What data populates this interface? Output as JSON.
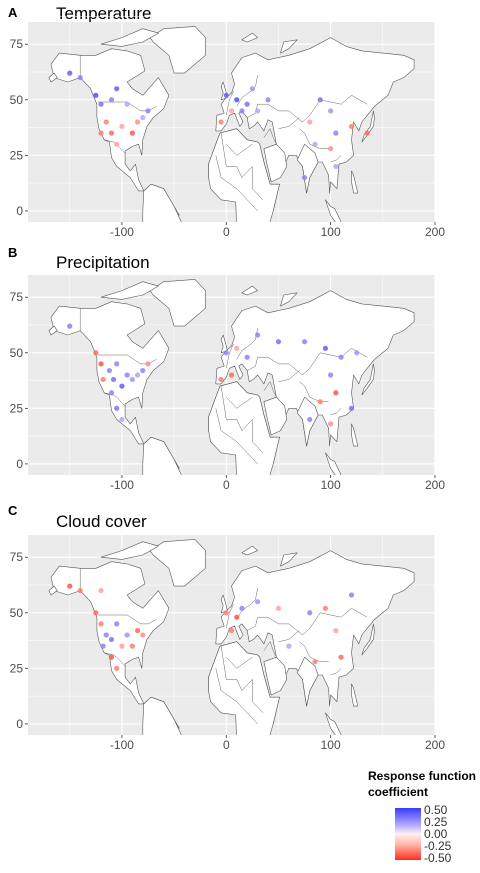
{
  "panels": [
    {
      "letter": "A",
      "title": "Temperature"
    },
    {
      "letter": "B",
      "title": "Precipitation"
    },
    {
      "letter": "C",
      "title": "Cloud cover"
    }
  ],
  "axes": {
    "x_ticks": [
      "-100",
      "0",
      "100",
      "200"
    ],
    "y_ticks": [
      "75",
      "50",
      "25",
      "0"
    ],
    "lon_values": [
      -100,
      0,
      100,
      200
    ],
    "lat_values": [
      75,
      50,
      25,
      0
    ]
  },
  "legend": {
    "title_line1": "Response function",
    "title_line2": "coefficient",
    "labels": [
      "0.50",
      "0.25",
      "0.00",
      "-0.25",
      "-0.50"
    ],
    "values": [
      0.5,
      0.25,
      0.0,
      -0.25,
      -0.5
    ]
  },
  "colors": {
    "panel_bg": "#ebebeb",
    "land": "#ffffff",
    "border": "#555555",
    "positive": "#3b3bff",
    "neutral": "#fdf1f1",
    "negative": "#ff2e1e"
  },
  "chart_data": [
    {
      "type": "scatter",
      "title": "Temperature",
      "xlabel": "",
      "ylabel": "",
      "xlim": [
        -190,
        200
      ],
      "ylim": [
        -5,
        85
      ],
      "grid": true,
      "points": [
        {
          "lon": -150,
          "lat": 62,
          "v": 0.4
        },
        {
          "lon": -140,
          "lat": 60,
          "v": 0.3
        },
        {
          "lon": -125,
          "lat": 52,
          "v": 0.45
        },
        {
          "lon": -120,
          "lat": 48,
          "v": 0.35
        },
        {
          "lon": -110,
          "lat": 50,
          "v": 0.3
        },
        {
          "lon": -105,
          "lat": 55,
          "v": 0.4
        },
        {
          "lon": -95,
          "lat": 48,
          "v": 0.2
        },
        {
          "lon": -115,
          "lat": 40,
          "v": -0.3
        },
        {
          "lon": -110,
          "lat": 35,
          "v": -0.35
        },
        {
          "lon": -100,
          "lat": 38,
          "v": -0.2
        },
        {
          "lon": -90,
          "lat": 35,
          "v": -0.4
        },
        {
          "lon": -85,
          "lat": 40,
          "v": -0.25
        },
        {
          "lon": -80,
          "lat": 42,
          "v": 0.2
        },
        {
          "lon": -75,
          "lat": 45,
          "v": 0.3
        },
        {
          "lon": -120,
          "lat": 35,
          "v": -0.3
        },
        {
          "lon": -105,
          "lat": 30,
          "v": -0.2
        },
        {
          "lon": 0,
          "lat": 52,
          "v": 0.4
        },
        {
          "lon": 10,
          "lat": 50,
          "v": 0.45
        },
        {
          "lon": 20,
          "lat": 48,
          "v": 0.35
        },
        {
          "lon": 15,
          "lat": 45,
          "v": 0.3
        },
        {
          "lon": 25,
          "lat": 55,
          "v": 0.25
        },
        {
          "lon": 5,
          "lat": 45,
          "v": -0.2
        },
        {
          "lon": -5,
          "lat": 40,
          "v": -0.3
        },
        {
          "lon": 30,
          "lat": 45,
          "v": 0.2
        },
        {
          "lon": 40,
          "lat": 50,
          "v": 0.3
        },
        {
          "lon": 90,
          "lat": 50,
          "v": 0.35
        },
        {
          "lon": 100,
          "lat": 45,
          "v": 0.25
        },
        {
          "lon": 80,
          "lat": 40,
          "v": -0.2
        },
        {
          "lon": 105,
          "lat": 35,
          "v": 0.3
        },
        {
          "lon": 100,
          "lat": 28,
          "v": -0.25
        },
        {
          "lon": 85,
          "lat": 30,
          "v": 0.2
        },
        {
          "lon": 120,
          "lat": 38,
          "v": -0.3
        },
        {
          "lon": 135,
          "lat": 35,
          "v": -0.35
        },
        {
          "lon": 105,
          "lat": 20,
          "v": 0.2
        },
        {
          "lon": 75,
          "lat": 15,
          "v": 0.3
        }
      ]
    },
    {
      "type": "scatter",
      "title": "Precipitation",
      "xlabel": "",
      "ylabel": "",
      "xlim": [
        -190,
        200
      ],
      "ylim": [
        -5,
        85
      ],
      "grid": true,
      "points": [
        {
          "lon": -150,
          "lat": 62,
          "v": 0.3
        },
        {
          "lon": -125,
          "lat": 50,
          "v": -0.35
        },
        {
          "lon": -120,
          "lat": 45,
          "v": -0.4
        },
        {
          "lon": -118,
          "lat": 38,
          "v": -0.3
        },
        {
          "lon": -112,
          "lat": 42,
          "v": 0.3
        },
        {
          "lon": -108,
          "lat": 38,
          "v": 0.35
        },
        {
          "lon": -105,
          "lat": 45,
          "v": 0.3
        },
        {
          "lon": -100,
          "lat": 35,
          "v": 0.4
        },
        {
          "lon": -95,
          "lat": 40,
          "v": 0.3
        },
        {
          "lon": -90,
          "lat": 38,
          "v": 0.25
        },
        {
          "lon": -85,
          "lat": 40,
          "v": 0.2
        },
        {
          "lon": -80,
          "lat": 42,
          "v": 0.3
        },
        {
          "lon": -75,
          "lat": 45,
          "v": -0.25
        },
        {
          "lon": -110,
          "lat": 32,
          "v": 0.3
        },
        {
          "lon": -105,
          "lat": 25,
          "v": 0.35
        },
        {
          "lon": -100,
          "lat": 20,
          "v": 0.2
        },
        {
          "lon": 0,
          "lat": 50,
          "v": 0.3
        },
        {
          "lon": 10,
          "lat": 52,
          "v": -0.2
        },
        {
          "lon": 20,
          "lat": 48,
          "v": 0.3
        },
        {
          "lon": 5,
          "lat": 40,
          "v": -0.35
        },
        {
          "lon": -5,
          "lat": 38,
          "v": -0.3
        },
        {
          "lon": 30,
          "lat": 58,
          "v": 0.3
        },
        {
          "lon": 50,
          "lat": 55,
          "v": 0.35
        },
        {
          "lon": 75,
          "lat": 55,
          "v": 0.3
        },
        {
          "lon": 95,
          "lat": 52,
          "v": 0.4
        },
        {
          "lon": 110,
          "lat": 48,
          "v": 0.3
        },
        {
          "lon": 125,
          "lat": 50,
          "v": 0.25
        },
        {
          "lon": 100,
          "lat": 40,
          "v": 0.3
        },
        {
          "lon": 105,
          "lat": 32,
          "v": -0.4
        },
        {
          "lon": 90,
          "lat": 28,
          "v": -0.3
        },
        {
          "lon": 80,
          "lat": 20,
          "v": 0.3
        },
        {
          "lon": 100,
          "lat": 18,
          "v": -0.25
        },
        {
          "lon": 120,
          "lat": 25,
          "v": 0.35
        }
      ]
    },
    {
      "type": "scatter",
      "title": "Cloud cover",
      "xlabel": "",
      "ylabel": "",
      "xlim": [
        -190,
        200
      ],
      "ylim": [
        -5,
        85
      ],
      "grid": true,
      "points": [
        {
          "lon": -150,
          "lat": 62,
          "v": -0.4
        },
        {
          "lon": -140,
          "lat": 60,
          "v": -0.3
        },
        {
          "lon": -120,
          "lat": 60,
          "v": -0.2
        },
        {
          "lon": -125,
          "lat": 50,
          "v": -0.35
        },
        {
          "lon": -120,
          "lat": 45,
          "v": -0.3
        },
        {
          "lon": -115,
          "lat": 40,
          "v": 0.3
        },
        {
          "lon": -110,
          "lat": 38,
          "v": 0.35
        },
        {
          "lon": -105,
          "lat": 45,
          "v": 0.3
        },
        {
          "lon": -100,
          "lat": 35,
          "v": -0.2
        },
        {
          "lon": -95,
          "lat": 40,
          "v": 0.25
        },
        {
          "lon": -90,
          "lat": 35,
          "v": -0.3
        },
        {
          "lon": -85,
          "lat": 42,
          "v": -0.35
        },
        {
          "lon": -80,
          "lat": 40,
          "v": -0.25
        },
        {
          "lon": -110,
          "lat": 30,
          "v": -0.4
        },
        {
          "lon": -105,
          "lat": 25,
          "v": -0.3
        },
        {
          "lon": -118,
          "lat": 35,
          "v": 0.3
        },
        {
          "lon": 0,
          "lat": 50,
          "v": -0.3
        },
        {
          "lon": 10,
          "lat": 48,
          "v": -0.4
        },
        {
          "lon": 5,
          "lat": 42,
          "v": -0.3
        },
        {
          "lon": 15,
          "lat": 52,
          "v": 0.3
        },
        {
          "lon": 30,
          "lat": 55,
          "v": 0.25
        },
        {
          "lon": 50,
          "lat": 52,
          "v": -0.2
        },
        {
          "lon": 80,
          "lat": 50,
          "v": 0.3
        },
        {
          "lon": 95,
          "lat": 52,
          "v": -0.3
        },
        {
          "lon": 120,
          "lat": 58,
          "v": 0.3
        },
        {
          "lon": 105,
          "lat": 42,
          "v": -0.2
        },
        {
          "lon": 110,
          "lat": 30,
          "v": -0.35
        },
        {
          "lon": 85,
          "lat": 28,
          "v": -0.3
        },
        {
          "lon": 60,
          "lat": 35,
          "v": 0.2
        }
      ]
    }
  ]
}
